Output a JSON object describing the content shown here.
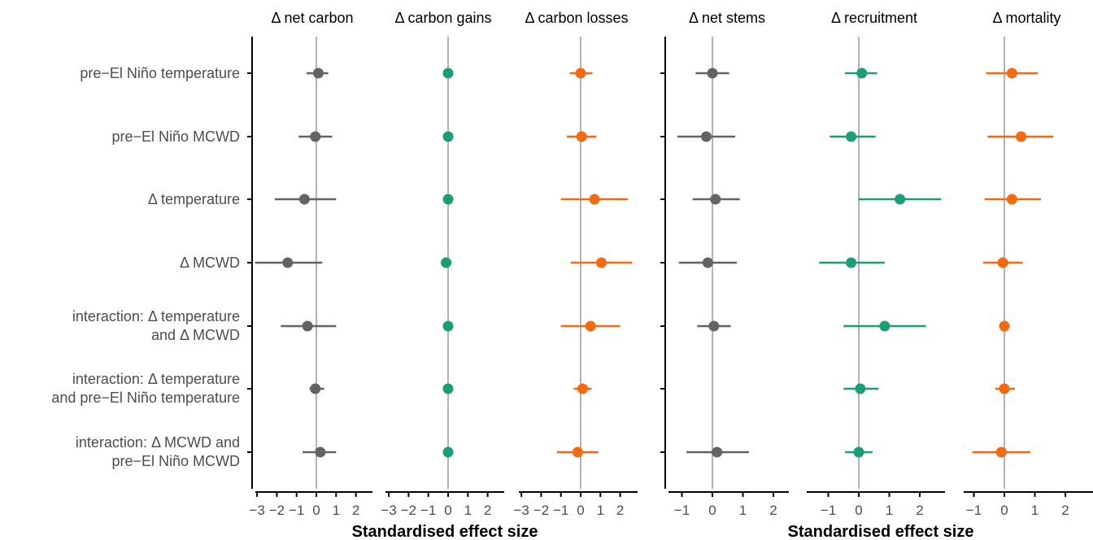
{
  "rows": [
    [
      "pre−El Niño temperature"
    ],
    [
      "pre−El Niño MCWD"
    ],
    [
      "Δ temperature"
    ],
    [
      "Δ MCWD"
    ],
    [
      "interaction: Δ temperature",
      "and Δ MCWD"
    ],
    [
      "interaction: Δ temperature",
      "and pre−El Niño temperature"
    ],
    [
      "interaction: Δ MCWD and",
      "pre−El Niño MCWD"
    ]
  ],
  "colors": {
    "grey": "#636363",
    "green": "#1b9e77",
    "orange": "#f26a11",
    "zero_line": "#b3b3b3",
    "axis": "#000000"
  },
  "chart_data": [
    {
      "type": "scatter",
      "title": "Δ net carbon",
      "xlabel": "Standardised effect size",
      "color": "grey",
      "xlim": [
        -3.2,
        2.8
      ],
      "ticks": [
        -3,
        -2,
        -1,
        0,
        1,
        2
      ],
      "tick_labels": [
        "−3",
        "−2",
        "−1",
        "0",
        "1",
        "2"
      ],
      "estimates": [
        0.1,
        -0.05,
        -0.6,
        -1.45,
        -0.45,
        -0.05,
        0.2
      ],
      "lower": [
        -0.5,
        -0.9,
        -2.1,
        -3.1,
        -1.8,
        -0.35,
        -0.7
      ],
      "upper": [
        0.6,
        0.8,
        1.0,
        0.3,
        1.0,
        0.4,
        1.0
      ]
    },
    {
      "type": "scatter",
      "title": "Δ carbon gains",
      "xlabel": "",
      "color": "green",
      "xlim": [
        -3.2,
        2.8
      ],
      "ticks": [
        -3,
        -2,
        -1,
        0,
        1,
        2
      ],
      "tick_labels": [
        "−3",
        "−2",
        "−1",
        "0",
        "1",
        "2"
      ],
      "estimates": [
        0.0,
        0.0,
        0.0,
        -0.1,
        0.0,
        0.0,
        0.0
      ],
      "lower": [
        -0.05,
        -0.05,
        -0.05,
        -0.2,
        -0.05,
        -0.05,
        -0.05
      ],
      "upper": [
        0.05,
        0.05,
        0.05,
        0.0,
        0.05,
        0.05,
        0.05
      ]
    },
    {
      "type": "scatter",
      "title": "Δ carbon losses",
      "xlabel": "",
      "color": "orange",
      "xlim": [
        -3.2,
        2.8
      ],
      "ticks": [
        -3,
        -2,
        -1,
        0,
        1,
        2
      ],
      "tick_labels": [
        "−3",
        "−2",
        "−1",
        "0",
        "1",
        "2"
      ],
      "estimates": [
        0.0,
        0.05,
        0.7,
        1.05,
        0.5,
        0.1,
        -0.15
      ],
      "lower": [
        -0.55,
        -0.7,
        -1.0,
        -0.5,
        -1.0,
        -0.35,
        -1.2
      ],
      "upper": [
        0.6,
        0.8,
        2.4,
        2.6,
        2.0,
        0.55,
        0.9
      ]
    },
    {
      "type": "scatter",
      "title": "Δ net stems",
      "xlabel": "Standardised effect size",
      "color": "grey",
      "xlim": [
        -1.6,
        2.8
      ],
      "ticks": [
        -1,
        0,
        1,
        2
      ],
      "tick_labels": [
        "−1",
        "0",
        "1",
        "2"
      ],
      "estimates": [
        0.0,
        -0.2,
        0.1,
        -0.15,
        0.05,
        null,
        0.15
      ],
      "lower": [
        -0.55,
        -1.15,
        -0.65,
        -1.1,
        -0.5,
        null,
        -0.85
      ],
      "upper": [
        0.55,
        0.75,
        0.9,
        0.8,
        0.6,
        null,
        1.2
      ]
    },
    {
      "type": "scatter",
      "title": "Δ recruitment",
      "xlabel": "",
      "color": "green",
      "xlim": [
        -1.6,
        2.8
      ],
      "ticks": [
        -1,
        0,
        1,
        2
      ],
      "tick_labels": [
        "−1",
        "0",
        "1",
        "2"
      ],
      "estimates": [
        0.1,
        -0.25,
        1.35,
        -0.25,
        0.85,
        0.05,
        0.0
      ],
      "lower": [
        -0.45,
        -0.95,
        0.0,
        -1.3,
        -0.5,
        -0.5,
        -0.45
      ],
      "upper": [
        0.6,
        0.55,
        2.7,
        0.85,
        2.2,
        0.65,
        0.45
      ]
    },
    {
      "type": "scatter",
      "title": "Δ mortality",
      "xlabel": "",
      "color": "orange",
      "xlim": [
        -1.6,
        2.8
      ],
      "ticks": [
        -1,
        0,
        1,
        2
      ],
      "tick_labels": [
        "−1",
        "0",
        "1",
        "2"
      ],
      "estimates": [
        0.25,
        0.55,
        0.25,
        -0.05,
        0.0,
        0.0,
        -0.1
      ],
      "lower": [
        -0.6,
        -0.55,
        -0.65,
        -0.7,
        -0.05,
        -0.3,
        -1.05
      ],
      "upper": [
        1.1,
        1.6,
        1.2,
        0.6,
        0.05,
        0.35,
        0.85
      ]
    }
  ]
}
